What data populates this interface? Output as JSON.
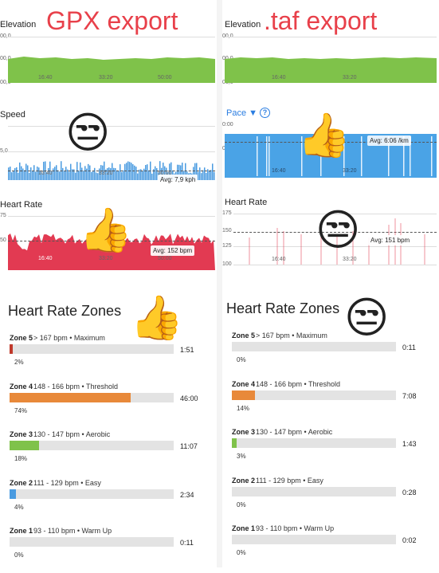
{
  "overlay": {
    "left_title": "GPX export",
    "right_title": ".taf export"
  },
  "left": {
    "elevation": {
      "title": "Elevation",
      "y_top": "00,0",
      "y_mid": "00,0",
      "y_bot": "00,0",
      "x_ticks": [
        "16:40",
        "33:20",
        "50:00"
      ],
      "color": "#7fc24a"
    },
    "speed": {
      "title": "Speed",
      "y_mid": "5,0",
      "x_ticks": [
        "16:40",
        "33:20",
        "50:00"
      ],
      "avg": "Avg: 7,9 kph",
      "color": "#4a9be0"
    },
    "heart_rate": {
      "title": "Heart Rate",
      "y_top": "75",
      "y_mid": "50",
      "x_ticks": [
        "16:40",
        "33:20",
        "50:00"
      ],
      "avg": "Avg: 152 bpm",
      "color": "#e23a52"
    },
    "zones_title": "Heart Rate Zones",
    "zones": [
      {
        "name": "Zone 5",
        "range": "> 167 bpm • Maximum",
        "time": "1:51",
        "pct": "2%",
        "fraction": 0.02,
        "color": "#c0392b"
      },
      {
        "name": "Zone 4",
        "range": "148 - 166 bpm • Threshold",
        "time": "46:00",
        "pct": "74%",
        "fraction": 0.74,
        "color": "#e8893a"
      },
      {
        "name": "Zone 3",
        "range": "130 - 147 bpm • Aerobic",
        "time": "11:07",
        "pct": "18%",
        "fraction": 0.18,
        "color": "#7fc24a"
      },
      {
        "name": "Zone 2",
        "range": "111 - 129 bpm • Easy",
        "time": "2:34",
        "pct": "4%",
        "fraction": 0.04,
        "color": "#4a9be0"
      },
      {
        "name": "Zone 1",
        "range": "93 - 110 bpm • Warm Up",
        "time": "0:11",
        "pct": "0%",
        "fraction": 0.0,
        "color": "#aaaaaa"
      }
    ]
  },
  "right": {
    "elevation": {
      "title": "Elevation",
      "y_top": "00,0",
      "y_mid": "00,0",
      "y_bot": "00,0",
      "x_ticks": [
        "16:40",
        "33:20"
      ],
      "color": "#7fc24a"
    },
    "pace": {
      "title": "Pace ▼",
      "help_icon": "?",
      "y_top": "0:00",
      "y_mid": "0:00",
      "x_ticks": [
        "16:40",
        "33:20"
      ],
      "avg": "Avg: 6:06 /km",
      "color": "#4aa3e6"
    },
    "heart_rate": {
      "title": "Heart Rate",
      "y_top": "175",
      "y_2": "150",
      "y_3": "125",
      "y_bot": "100",
      "x_ticks": [
        "16:40",
        "33:20"
      ],
      "avg": "Avg: 151 bpm",
      "color": "#e23a52"
    },
    "zones_title": "Heart Rate Zones",
    "zones": [
      {
        "name": "Zone 5",
        "range": "> 167 bpm • Maximum",
        "time": "0:11",
        "pct": "0%",
        "fraction": 0.0,
        "color": "#c0392b"
      },
      {
        "name": "Zone 4",
        "range": "148 - 166 bpm • Threshold",
        "time": "7:08",
        "pct": "14%",
        "fraction": 0.14,
        "color": "#e8893a"
      },
      {
        "name": "Zone 3",
        "range": "130 - 147 bpm • Aerobic",
        "time": "1:43",
        "pct": "3%",
        "fraction": 0.03,
        "color": "#7fc24a"
      },
      {
        "name": "Zone 2",
        "range": "111 - 129 bpm • Easy",
        "time": "0:28",
        "pct": "0%",
        "fraction": 0.0,
        "color": "#4a9be0"
      },
      {
        "name": "Zone 1",
        "range": "93 - 110 bpm • Warm Up",
        "time": "0:02",
        "pct": "0%",
        "fraction": 0.0,
        "color": "#aaaaaa"
      }
    ]
  },
  "emojis": {
    "unamused": "😒",
    "thumbs_up": "👍"
  }
}
